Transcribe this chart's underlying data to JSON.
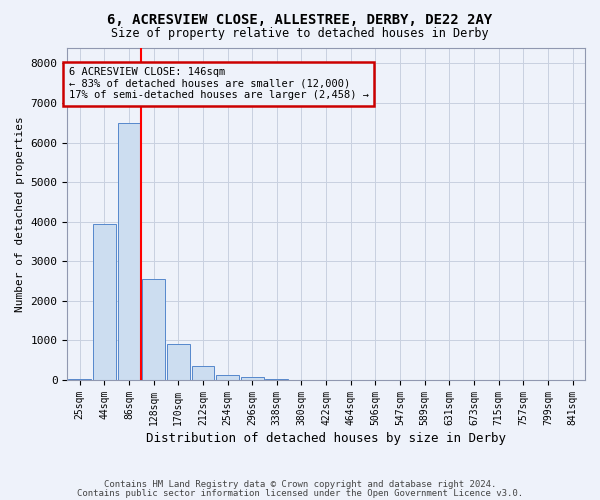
{
  "title1": "6, ACRESVIEW CLOSE, ALLESTREE, DERBY, DE22 2AY",
  "title2": "Size of property relative to detached houses in Derby",
  "xlabel": "Distribution of detached houses by size in Derby",
  "ylabel": "Number of detached properties",
  "bar_color": "#ccddf0",
  "bar_edge_color": "#5588cc",
  "categories": [
    "25sqm",
    "44sqm",
    "86sqm",
    "128sqm",
    "170sqm",
    "212sqm",
    "254sqm",
    "296sqm",
    "338sqm",
    "380sqm",
    "422sqm",
    "464sqm",
    "506sqm",
    "547sqm",
    "589sqm",
    "631sqm",
    "673sqm",
    "715sqm",
    "757sqm",
    "799sqm",
    "841sqm"
  ],
  "values": [
    30,
    3950,
    6500,
    2550,
    900,
    350,
    130,
    80,
    30,
    0,
    0,
    0,
    0,
    0,
    0,
    0,
    0,
    0,
    0,
    0,
    0
  ],
  "ylim": [
    0,
    8400
  ],
  "yticks": [
    0,
    1000,
    2000,
    3000,
    4000,
    5000,
    6000,
    7000,
    8000
  ],
  "property_line_x": 2.5,
  "annotation_line1": "6 ACRESVIEW CLOSE: 146sqm",
  "annotation_line2": "← 83% of detached houses are smaller (12,000)",
  "annotation_line3": "17% of semi-detached houses are larger (2,458) →",
  "footer1": "Contains HM Land Registry data © Crown copyright and database right 2024.",
  "footer2": "Contains public sector information licensed under the Open Government Licence v3.0.",
  "bg_color": "#eef2fa",
  "grid_color": "#c8d0e0",
  "annotation_box_color": "#eef2fa",
  "annotation_border_color": "#cc0000"
}
